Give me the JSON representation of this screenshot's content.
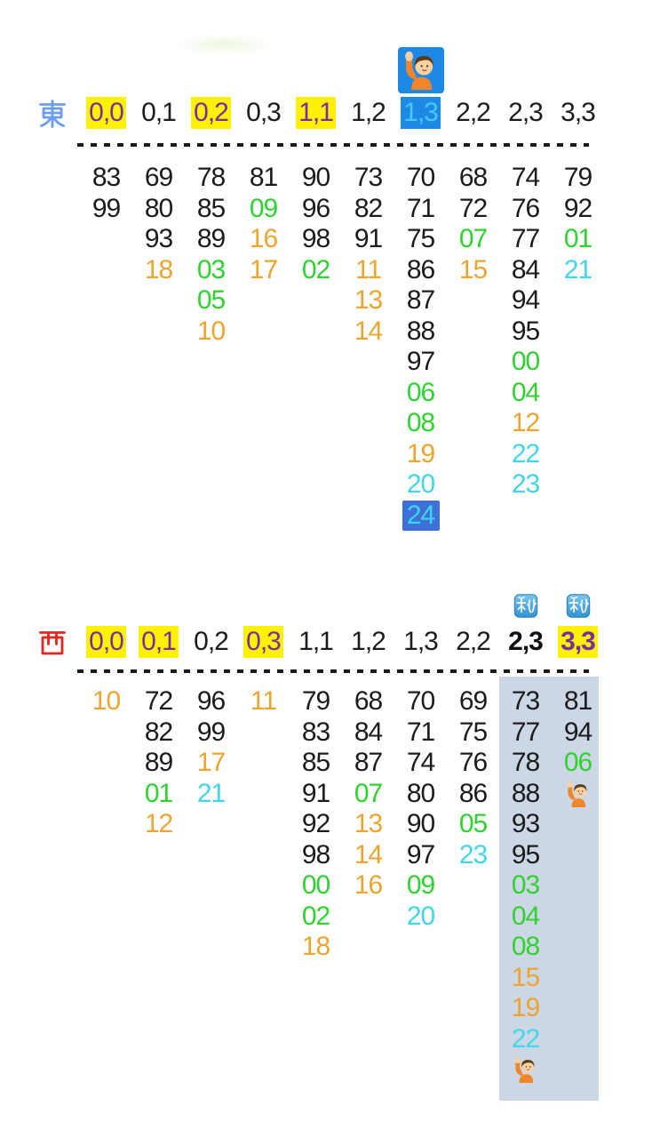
{
  "colors": {
    "black": "#1c1c1c",
    "green": "#2fd32f",
    "orange": "#eea42f",
    "cyan": "#41d6e9",
    "purple": "#7b2d9e",
    "yellow": "#fef200",
    "blue_header_bg": "#1e88e5",
    "blue_header_text": "#47c9f5",
    "box_bg": "#3d71d9",
    "box_text": "#3fd6ea",
    "east_label": "#6b9cf2",
    "west_label": "#e3241f",
    "highlight_bg": "#ccd7e5"
  },
  "icons": {
    "raising_hand": "raising-hand-emoji",
    "secret_badge": "secret-badge"
  },
  "sections": [
    {
      "id": "east",
      "label": "東",
      "columns": [
        {
          "header": "0,0",
          "style": "yellow",
          "cells": [
            {
              "v": "83"
            },
            {
              "v": "99"
            }
          ]
        },
        {
          "header": "0,1",
          "style": "plain",
          "cells": [
            {
              "v": "69"
            },
            {
              "v": "80"
            },
            {
              "v": "93"
            },
            {
              "v": "18",
              "c": "orange"
            }
          ]
        },
        {
          "header": "0,2",
          "style": "yellow",
          "cells": [
            {
              "v": "78"
            },
            {
              "v": "85"
            },
            {
              "v": "89"
            },
            {
              "v": "03",
              "c": "green"
            },
            {
              "v": "05",
              "c": "green"
            },
            {
              "v": "10",
              "c": "orange"
            }
          ]
        },
        {
          "header": "0,3",
          "style": "plain",
          "cells": [
            {
              "v": "81"
            },
            {
              "v": "09",
              "c": "green"
            },
            {
              "v": "16",
              "c": "orange"
            },
            {
              "v": "17",
              "c": "orange"
            }
          ]
        },
        {
          "header": "1,1",
          "style": "yellow",
          "cells": [
            {
              "v": "90"
            },
            {
              "v": "96"
            },
            {
              "v": "98"
            },
            {
              "v": "02",
              "c": "green"
            }
          ]
        },
        {
          "header": "1,2",
          "style": "plain",
          "cells": [
            {
              "v": "73"
            },
            {
              "v": "82"
            },
            {
              "v": "91"
            },
            {
              "v": "11",
              "c": "orange"
            },
            {
              "v": "13",
              "c": "orange"
            },
            {
              "v": "14",
              "c": "orange"
            }
          ]
        },
        {
          "header": "1,3",
          "style": "blue",
          "badge": "raising-hand",
          "cells": [
            {
              "v": "70"
            },
            {
              "v": "71"
            },
            {
              "v": "75"
            },
            {
              "v": "86"
            },
            {
              "v": "87"
            },
            {
              "v": "88"
            },
            {
              "v": "97"
            },
            {
              "v": "06",
              "c": "green"
            },
            {
              "v": "08",
              "c": "green"
            },
            {
              "v": "19",
              "c": "orange"
            },
            {
              "v": "20",
              "c": "cyan"
            },
            {
              "v": "24",
              "c": "box_text",
              "box": true
            }
          ]
        },
        {
          "header": "2,2",
          "style": "plain",
          "cells": [
            {
              "v": "68"
            },
            {
              "v": "72"
            },
            {
              "v": "07",
              "c": "green"
            },
            {
              "v": "15",
              "c": "orange"
            }
          ]
        },
        {
          "header": "2,3",
          "style": "plain",
          "cells": [
            {
              "v": "74"
            },
            {
              "v": "76"
            },
            {
              "v": "77"
            },
            {
              "v": "84"
            },
            {
              "v": "94"
            },
            {
              "v": "95"
            },
            {
              "v": "00",
              "c": "green"
            },
            {
              "v": "04",
              "c": "green"
            },
            {
              "v": "12",
              "c": "orange"
            },
            {
              "v": "22",
              "c": "cyan"
            },
            {
              "v": "23",
              "c": "cyan"
            }
          ]
        },
        {
          "header": "3,3",
          "style": "plain",
          "cells": [
            {
              "v": "79"
            },
            {
              "v": "92"
            },
            {
              "v": "01",
              "c": "green"
            },
            {
              "v": "21",
              "c": "cyan"
            }
          ]
        }
      ]
    },
    {
      "id": "west",
      "label": "西",
      "columns": [
        {
          "header": "0,0",
          "style": "yellow",
          "cells": [
            {
              "v": "10",
              "c": "orange"
            }
          ]
        },
        {
          "header": "0,1",
          "style": "yellow",
          "cells": [
            {
              "v": "72"
            },
            {
              "v": "82"
            },
            {
              "v": "89"
            },
            {
              "v": "01",
              "c": "green"
            },
            {
              "v": "12",
              "c": "orange"
            }
          ]
        },
        {
          "header": "0,2",
          "style": "plain",
          "cells": [
            {
              "v": "96"
            },
            {
              "v": "99"
            },
            {
              "v": "17",
              "c": "orange"
            },
            {
              "v": "21",
              "c": "cyan"
            }
          ]
        },
        {
          "header": "0,3",
          "style": "yellow",
          "cells": [
            {
              "v": "11",
              "c": "orange"
            }
          ]
        },
        {
          "header": "1,1",
          "style": "plain",
          "cells": [
            {
              "v": "79"
            },
            {
              "v": "83"
            },
            {
              "v": "85"
            },
            {
              "v": "91"
            },
            {
              "v": "92"
            },
            {
              "v": "98"
            },
            {
              "v": "00",
              "c": "green"
            },
            {
              "v": "02",
              "c": "green"
            },
            {
              "v": "18",
              "c": "orange"
            }
          ]
        },
        {
          "header": "1,2",
          "style": "plain",
          "cells": [
            {
              "v": "68"
            },
            {
              "v": "84"
            },
            {
              "v": "87"
            },
            {
              "v": "07",
              "c": "green"
            },
            {
              "v": "13",
              "c": "orange"
            },
            {
              "v": "14",
              "c": "orange"
            },
            {
              "v": "16",
              "c": "orange"
            }
          ]
        },
        {
          "header": "1,3",
          "style": "plain",
          "cells": [
            {
              "v": "70"
            },
            {
              "v": "71"
            },
            {
              "v": "74"
            },
            {
              "v": "80"
            },
            {
              "v": "90"
            },
            {
              "v": "97"
            },
            {
              "v": "09",
              "c": "green"
            },
            {
              "v": "20",
              "c": "cyan"
            }
          ]
        },
        {
          "header": "2,2",
          "style": "plain",
          "cells": [
            {
              "v": "69"
            },
            {
              "v": "75"
            },
            {
              "v": "76"
            },
            {
              "v": "86"
            },
            {
              "v": "05",
              "c": "green"
            },
            {
              "v": "23",
              "c": "cyan"
            }
          ]
        },
        {
          "header": "2,3",
          "style": "bold",
          "badge": "secret",
          "highlighted": true,
          "cells": [
            {
              "v": "73"
            },
            {
              "v": "77"
            },
            {
              "v": "78"
            },
            {
              "v": "88"
            },
            {
              "v": "93"
            },
            {
              "v": "95"
            },
            {
              "v": "03",
              "c": "green"
            },
            {
              "v": "04",
              "c": "green"
            },
            {
              "v": "08",
              "c": "green"
            },
            {
              "v": "15",
              "c": "orange"
            },
            {
              "v": "19",
              "c": "orange"
            },
            {
              "v": "22",
              "c": "cyan"
            },
            {
              "emoji": "raising-hand"
            }
          ]
        },
        {
          "header": "3,3",
          "style": "yellow-bold",
          "badge": "secret",
          "highlighted": true,
          "cells": [
            {
              "v": "81"
            },
            {
              "v": "94"
            },
            {
              "v": "06",
              "c": "green"
            },
            {
              "emoji": "raising-hand"
            }
          ]
        }
      ]
    }
  ]
}
